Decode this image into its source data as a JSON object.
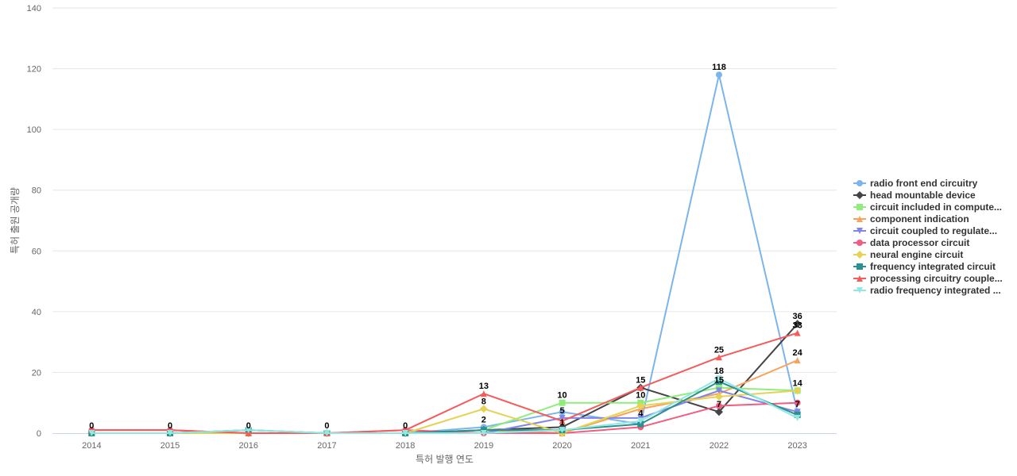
{
  "chart_data": {
    "type": "line",
    "xlabel": "특허 발행 연도",
    "ylabel": "특허 출원 공개량",
    "ylim": [
      0,
      140
    ],
    "yticks": [
      0,
      20,
      40,
      60,
      80,
      100,
      120,
      140
    ],
    "categories": [
      "2014",
      "2015",
      "2016",
      "2017",
      "2018",
      "2019",
      "2020",
      "2021",
      "2022",
      "2023"
    ],
    "grid": true,
    "legend_position": "right",
    "series": [
      {
        "name": "radio front end circuitry",
        "color": "#7cb5ec",
        "marker": "circle",
        "values": [
          0,
          0,
          1,
          0,
          0,
          2,
          7,
          3,
          118,
          7
        ]
      },
      {
        "name": "head mountable device",
        "color": "#434348",
        "marker": "diamond",
        "values": [
          0,
          0,
          0,
          0,
          0,
          1,
          2,
          15,
          7,
          36
        ]
      },
      {
        "name": "circuit included in compute...",
        "color": "#90ed7d",
        "marker": "square",
        "values": [
          0,
          0,
          0,
          0,
          0,
          1,
          10,
          10,
          15,
          14
        ]
      },
      {
        "name": "component indication",
        "color": "#f7a35c",
        "marker": "triangle",
        "values": [
          0,
          0,
          0,
          0,
          0,
          1,
          0,
          8,
          13,
          24
        ]
      },
      {
        "name": "circuit coupled to regulate...",
        "color": "#8085e9",
        "marker": "triangle-down",
        "values": [
          0,
          0,
          0,
          0,
          0,
          0,
          5,
          5,
          14,
          7
        ]
      },
      {
        "name": "data processor circuit",
        "color": "#f15c80",
        "marker": "circle",
        "values": [
          1,
          1,
          0,
          0,
          1,
          0,
          0,
          2,
          9,
          10
        ]
      },
      {
        "name": "neural engine circuit",
        "color": "#e4d354",
        "marker": "diamond",
        "values": [
          0,
          0,
          0,
          0,
          0,
          8,
          0,
          9,
          12,
          14
        ]
      },
      {
        "name": "frequency integrated circuit",
        "color": "#2b908f",
        "marker": "square",
        "values": [
          0,
          0,
          1,
          0,
          0,
          1,
          1,
          3,
          17,
          6
        ]
      },
      {
        "name": "processing circuitry couple...",
        "color": "#f45b5b",
        "marker": "triangle",
        "values": [
          1,
          1,
          0,
          0,
          1,
          13,
          4,
          15,
          25,
          33
        ]
      },
      {
        "name": "radio frequency integrated ...",
        "color": "#91e8e1",
        "marker": "triangle-down",
        "values": [
          0,
          0,
          1,
          0,
          0,
          0,
          1,
          4,
          18,
          5
        ]
      }
    ],
    "data_labels": [
      {
        "category": "2014",
        "value": 0,
        "text": "0"
      },
      {
        "category": "2015",
        "value": 0,
        "text": "0"
      },
      {
        "category": "2016",
        "value": 0,
        "text": "0"
      },
      {
        "category": "2017",
        "value": 0,
        "text": "0"
      },
      {
        "category": "2018",
        "value": 0,
        "text": "0"
      },
      {
        "category": "2019",
        "value": 13,
        "text": "13"
      },
      {
        "category": "2019",
        "value": 8,
        "text": "8"
      },
      {
        "category": "2019",
        "value": 2,
        "text": "2"
      },
      {
        "category": "2020",
        "value": 10,
        "text": "10"
      },
      {
        "category": "2020",
        "value": 5,
        "text": "5"
      },
      {
        "category": "2020",
        "value": 1,
        "text": "1"
      },
      {
        "category": "2021",
        "value": 15,
        "text": "15"
      },
      {
        "category": "2021",
        "value": 10,
        "text": "10"
      },
      {
        "category": "2021",
        "value": 4,
        "text": "4"
      },
      {
        "category": "2022",
        "value": 118,
        "text": "118"
      },
      {
        "category": "2022",
        "value": 25,
        "text": "25"
      },
      {
        "category": "2022",
        "value": 18,
        "text": "18"
      },
      {
        "category": "2022",
        "value": 15,
        "text": "15"
      },
      {
        "category": "2022",
        "value": 7,
        "text": "7"
      },
      {
        "category": "2023",
        "value": 36,
        "text": "36"
      },
      {
        "category": "2023",
        "value": 33,
        "text": "33"
      },
      {
        "category": "2023",
        "value": 24,
        "text": "24"
      },
      {
        "category": "2023",
        "value": 14,
        "text": "14"
      },
      {
        "category": "2023",
        "value": 7,
        "text": "7"
      }
    ]
  }
}
